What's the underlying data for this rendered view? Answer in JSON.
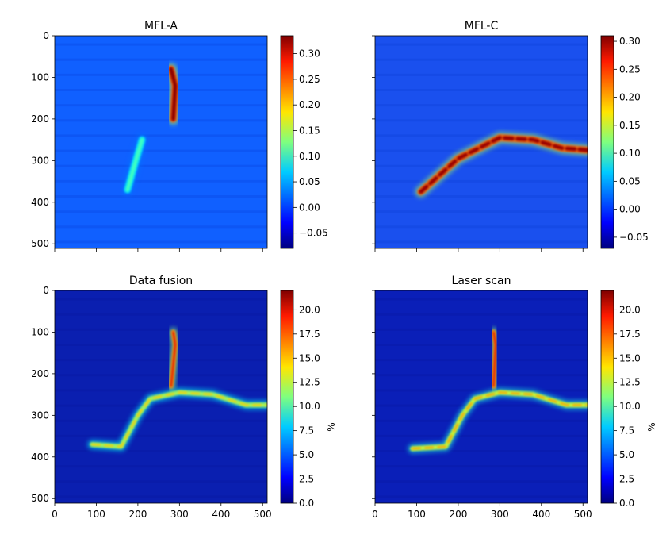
{
  "chart_data": [
    {
      "type": "heatmap",
      "title": "MFL-A",
      "y_ticks": [
        "0",
        "100",
        "200",
        "300",
        "400",
        "500"
      ],
      "x_ticks": [],
      "x_range": [
        0,
        511
      ],
      "y_range": [
        0,
        511
      ],
      "colorbar": {
        "ticks": [
          "0.30",
          "0.25",
          "0.20",
          "0.15",
          "0.10",
          "0.05",
          "0.00",
          "−0.05"
        ],
        "label": "",
        "range": [
          -0.08,
          0.335
        ]
      },
      "colormap": "jet",
      "features": [
        {
          "kind": "peak",
          "x": [
            280,
            290,
            285
          ],
          "y": [
            80,
            120,
            200
          ],
          "level": 0.33
        },
        {
          "kind": "trail",
          "x": [
            210,
            195,
            175
          ],
          "y": [
            250,
            300,
            370
          ],
          "level": 0.1
        }
      ]
    },
    {
      "type": "heatmap",
      "title": "MFL-C",
      "y_ticks": [
        "0",
        "100",
        "200",
        "300",
        "400",
        "500"
      ],
      "x_ticks": [],
      "x_range": [
        0,
        511
      ],
      "y_range": [
        0,
        511
      ],
      "colorbar": {
        "ticks": [
          "0.30",
          "0.25",
          "0.20",
          "0.15",
          "0.10",
          "0.05",
          "0.00",
          "−0.05"
        ],
        "label": "",
        "range": [
          -0.07,
          0.31
        ]
      },
      "colormap": "jet",
      "features": [
        {
          "kind": "crack",
          "x": [
            110,
            200,
            300,
            380,
            450,
            510
          ],
          "y": [
            375,
            295,
            245,
            250,
            270,
            275
          ],
          "level": 0.3
        }
      ]
    },
    {
      "type": "heatmap",
      "title": "Data fusion",
      "y_ticks": [
        "0",
        "100",
        "200",
        "300",
        "400",
        "500"
      ],
      "x_ticks": [
        "0",
        "100",
        "200",
        "300",
        "400",
        "500"
      ],
      "x_range": [
        0,
        511
      ],
      "y_range": [
        0,
        511
      ],
      "colorbar": {
        "ticks": [
          "20.0",
          "17.5",
          "15.0",
          "12.5",
          "10.0",
          "7.5",
          "5.0",
          "2.5",
          "0.0"
        ],
        "label": "%",
        "range": [
          0,
          22
        ]
      },
      "colormap": "jet",
      "features": [
        {
          "kind": "crack",
          "x": [
            90,
            160,
            200,
            230,
            300,
            380,
            460,
            510
          ],
          "y": [
            370,
            375,
            300,
            260,
            245,
            250,
            275,
            275
          ],
          "level": 15
        },
        {
          "kind": "branch",
          "x": [
            285,
            290,
            280
          ],
          "y": [
            100,
            130,
            230
          ],
          "level": 20
        }
      ]
    },
    {
      "type": "heatmap",
      "title": "Laser scan",
      "y_ticks": [
        "0",
        "100",
        "200",
        "300",
        "400",
        "500"
      ],
      "x_ticks": [
        "0",
        "100",
        "200",
        "300",
        "400",
        "500"
      ],
      "x_range": [
        0,
        511
      ],
      "y_range": [
        0,
        511
      ],
      "colorbar": {
        "ticks": [
          "20.0",
          "17.5",
          "15.0",
          "12.5",
          "10.0",
          "7.5",
          "5.0",
          "2.5",
          "0.0"
        ],
        "label": "%",
        "range": [
          0,
          22
        ]
      },
      "colormap": "jet",
      "features": [
        {
          "kind": "crack",
          "x": [
            90,
            170,
            210,
            240,
            300,
            380,
            460,
            510
          ],
          "y": [
            380,
            375,
            300,
            260,
            245,
            250,
            275,
            275
          ],
          "level": 16
        },
        {
          "kind": "branch",
          "x": [
            285,
            290,
            285
          ],
          "y": [
            100,
            130,
            230
          ],
          "level": 20
        }
      ]
    }
  ]
}
